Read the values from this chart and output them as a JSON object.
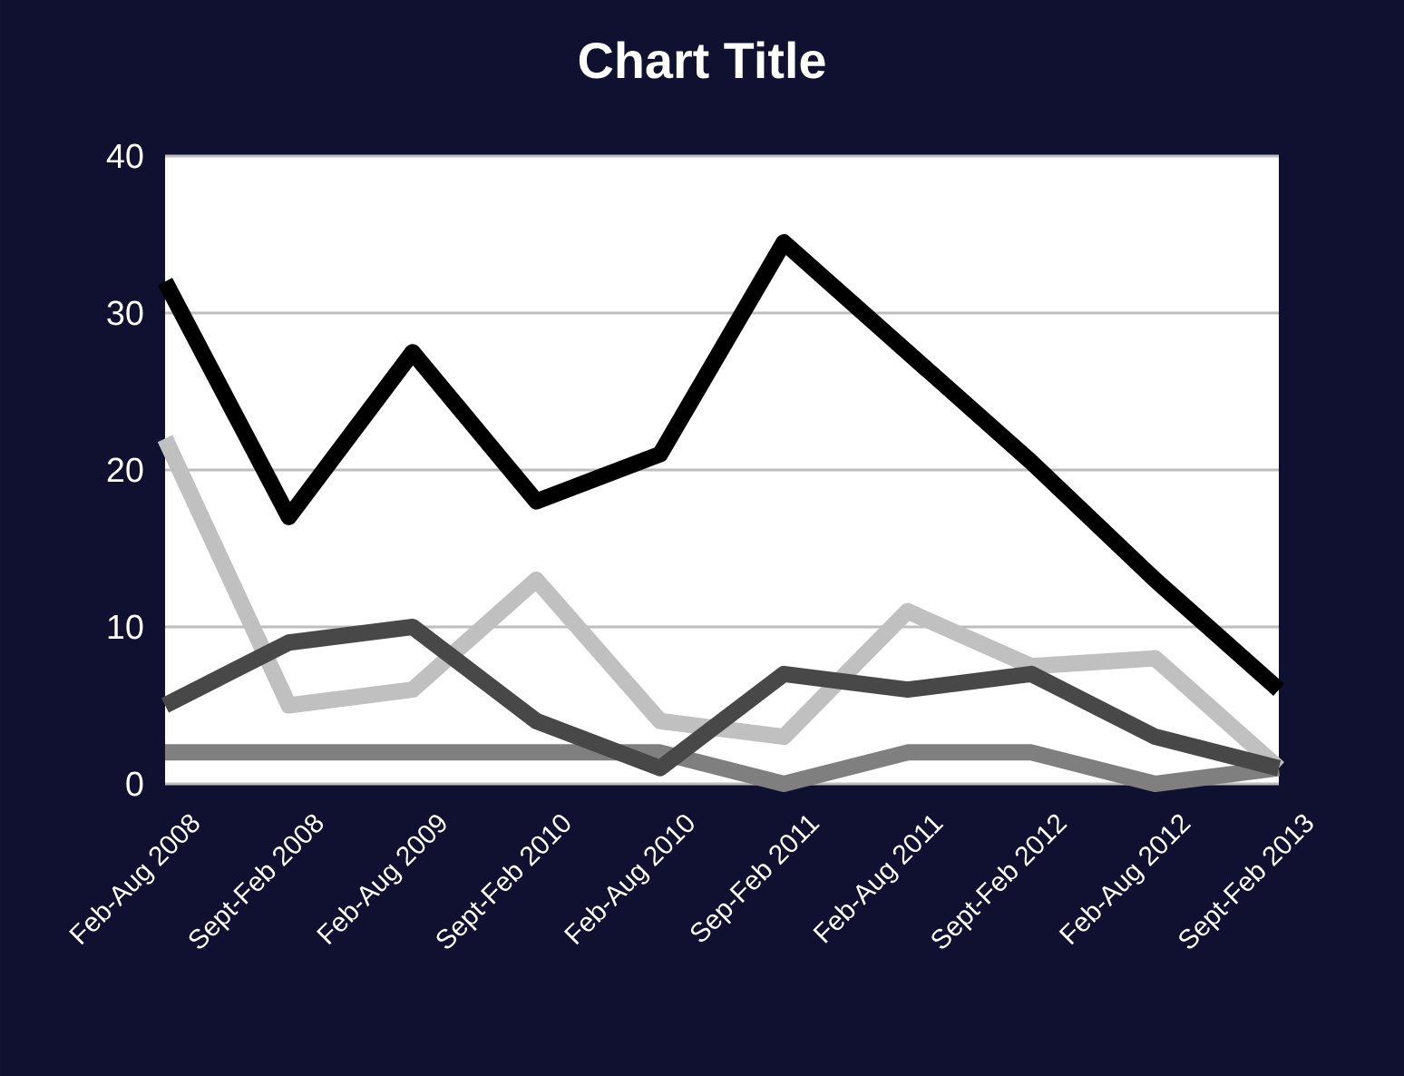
{
  "chart_data": {
    "type": "line",
    "title": "Chart Title",
    "categories": [
      "Feb-Aug 2008",
      "Sept-Feb 2008",
      "Feb-Aug 2009",
      "Sept-Feb 2010",
      "Feb-Aug 2010",
      "Sep-Feb 2011",
      "Feb-Aug 2011",
      "Sept-Feb 2012",
      "Feb-Aug 2012",
      "Sept-Feb 2013"
    ],
    "series": [
      {
        "color": "#c0c0c0",
        "values": [
          22,
          5,
          6,
          13,
          4,
          3,
          11,
          7.5,
          8,
          1
        ]
      },
      {
        "color": "#7f7f7f",
        "values": [
          2,
          2,
          2,
          2,
          2,
          0,
          2,
          2,
          0,
          1
        ]
      },
      {
        "color": "#484848",
        "values": [
          5,
          9,
          10,
          4,
          1,
          7,
          6,
          7,
          3,
          1
        ]
      },
      {
        "color": "#000000",
        "values": [
          32,
          17,
          27.5,
          18,
          21,
          34.5,
          27.5,
          20.5,
          13,
          6
        ]
      }
    ],
    "ylim": [
      0,
      40
    ],
    "yticks": [
      0,
      10,
      20,
      30,
      40
    ],
    "grid": "y",
    "marker": "none",
    "line_style": "solid"
  }
}
